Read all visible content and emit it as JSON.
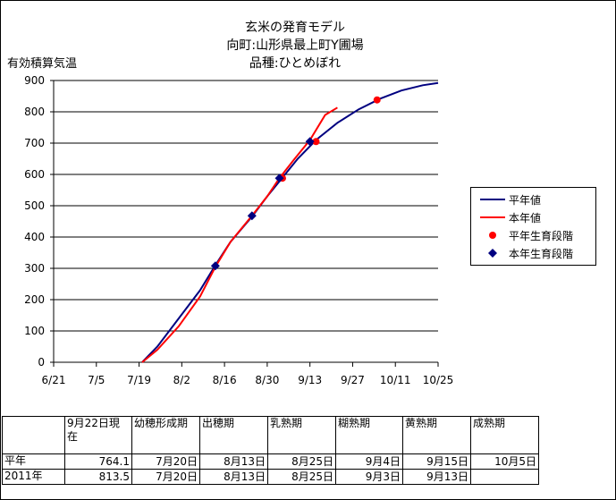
{
  "header": {
    "title": "玄米の発育モデル",
    "location": "向町:山形県最上町Y圃場",
    "variety": "品種:ひとめぼれ"
  },
  "colors": {
    "avg": "#000080",
    "current": "#ff0000"
  },
  "chart_data": {
    "type": "line",
    "title": "玄米の発育モデル",
    "ylabel": "有効積算気温",
    "xlabel": "",
    "ylim": [
      0,
      900
    ],
    "yticks": [
      0,
      100,
      200,
      300,
      400,
      500,
      600,
      700,
      800,
      900
    ],
    "xlim": [
      "6/21",
      "10/25"
    ],
    "xticks": [
      "6/21",
      "7/5",
      "7/19",
      "8/2",
      "8/16",
      "8/30",
      "9/13",
      "9/27",
      "10/11",
      "10/25"
    ],
    "grid": true,
    "legend_position": "right",
    "series": [
      {
        "name": "平年値",
        "kind": "line",
        "color": "#000080",
        "x": [
          "7/20",
          "7/25",
          "8/1",
          "8/8",
          "8/13",
          "8/18",
          "8/25",
          "8/30",
          "9/4",
          "9/9",
          "9/15",
          "9/22",
          "9/29",
          "10/6",
          "10/13",
          "10/20",
          "10/25"
        ],
        "y": [
          0,
          50,
          140,
          230,
          310,
          385,
          465,
          530,
          590,
          650,
          710,
          765,
          808,
          842,
          868,
          885,
          892
        ]
      },
      {
        "name": "本年値",
        "kind": "line",
        "color": "#ff0000",
        "x": [
          "7/20",
          "7/25",
          "8/1",
          "8/8",
          "8/13",
          "8/18",
          "8/25",
          "8/30",
          "9/3",
          "9/8",
          "9/13",
          "9/18",
          "9/22"
        ],
        "y": [
          0,
          40,
          115,
          210,
          305,
          385,
          468,
          530,
          588,
          650,
          710,
          790,
          813.5
        ]
      },
      {
        "name": "平年生育段階",
        "kind": "marker",
        "color": "#ff0000",
        "shape": "circle",
        "x": [
          "9/4",
          "9/15",
          "10/5"
        ],
        "y": [
          588,
          705,
          838
        ]
      },
      {
        "name": "本年生育段階",
        "kind": "marker",
        "color": "#000080",
        "shape": "diamond",
        "x": [
          "8/13",
          "8/25",
          "9/3",
          "9/13"
        ],
        "y": [
          308,
          468,
          588,
          705
        ]
      }
    ]
  },
  "table": {
    "headers": [
      "",
      "9月22日現在",
      "幼穂形成期",
      "出穂期",
      "乳熟期",
      "糊熟期",
      "黄熟期",
      "成熟期"
    ],
    "rows": [
      [
        "平年",
        "764.1",
        "7月20日",
        "8月13日",
        "8月25日",
        "9月4日",
        "9月15日",
        "10月5日"
      ],
      [
        "2011年",
        "813.5",
        "7月20日",
        "8月13日",
        "8月25日",
        "9月3日",
        "9月13日",
        ""
      ]
    ]
  }
}
